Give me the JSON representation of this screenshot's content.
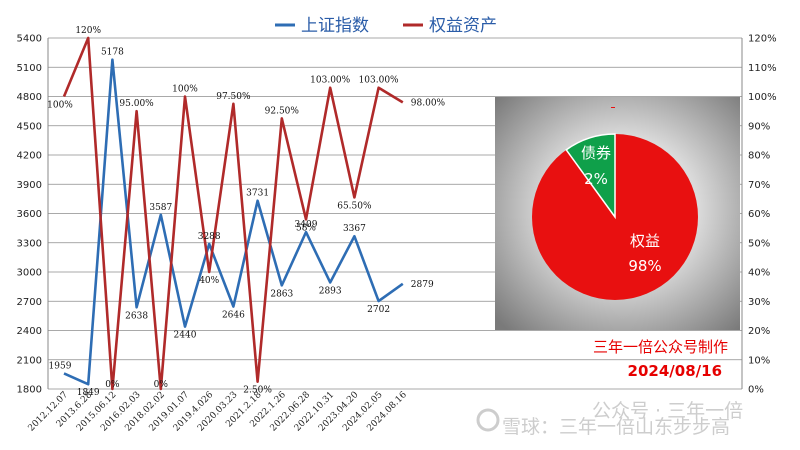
{
  "legend": {
    "series1": "上证指数",
    "series2": "权益资产",
    "series1_color": "#2e6db4",
    "series2_color": "#b02a2a"
  },
  "chart_data": [
    {
      "type": "line",
      "categories": [
        "2012.12.07",
        "2013.6.28",
        "2015.06.12",
        "2016.02.03",
        "2018.02.02",
        "2019.01.07",
        "2019.4.026",
        "2020.03.23",
        "2021.2.18",
        "2022.1.26",
        "2022.06.28",
        "2022.10.31",
        "2023.04.20",
        "2024.02.05",
        "2024.08.16"
      ],
      "y_left_ticks": [
        "1800",
        "2100",
        "2400",
        "2700",
        "3000",
        "3300",
        "3600",
        "3900",
        "4200",
        "4500",
        "4800",
        "5100",
        "5400"
      ],
      "y_right_ticks": [
        "0%",
        "10%",
        "20%",
        "30%",
        "40%",
        "50%",
        "60%",
        "70%",
        "80%",
        "90%",
        "100%",
        "110%",
        "120%"
      ],
      "ylim_left": [
        1800,
        5400
      ],
      "ylim_right": [
        0,
        120
      ],
      "grid": true,
      "legend_position": "top",
      "series": [
        {
          "name": "上证指数",
          "axis": "left",
          "color": "#2e6db4",
          "values": [
            1959,
            1849,
            5178,
            2638,
            3587,
            2440,
            3288,
            2646,
            3731,
            2863,
            3409,
            2893,
            3367,
            2702,
            2879
          ],
          "labels": [
            "1959",
            "1849",
            "5178",
            "2638",
            "3587",
            "2440",
            "3288",
            "2646",
            "3731",
            "2863",
            "3409",
            "2893",
            "3367",
            "2702",
            "2879"
          ]
        },
        {
          "name": "权益资产",
          "axis": "right",
          "color": "#b02a2a",
          "values": [
            100,
            120,
            0,
            95,
            0,
            100,
            40,
            97.5,
            2.5,
            92.5,
            58,
            103,
            65.5,
            103,
            98
          ],
          "labels": [
            "100%",
            "120%",
            "0%",
            "95.00%",
            "0%",
            "100%",
            "40%",
            "97.50%",
            "2.50%",
            "92.50%",
            "58%",
            "103.00%",
            "65.50%",
            "103.00%",
            "98.00%"
          ]
        }
      ]
    },
    {
      "type": "pie",
      "slices": [
        {
          "label": "权益",
          "text": "98%",
          "value": 98,
          "color": "#e81010"
        },
        {
          "label": "债券",
          "text": "2%",
          "value": 2,
          "color": "#0fa04a"
        }
      ]
    }
  ],
  "credit": {
    "line1": "三年一倍公众号制作",
    "line2": "2024/08/16"
  },
  "watermark": "雪球：三年一倍山东步步高",
  "watermark_public": "公众号 · 三年一倍"
}
